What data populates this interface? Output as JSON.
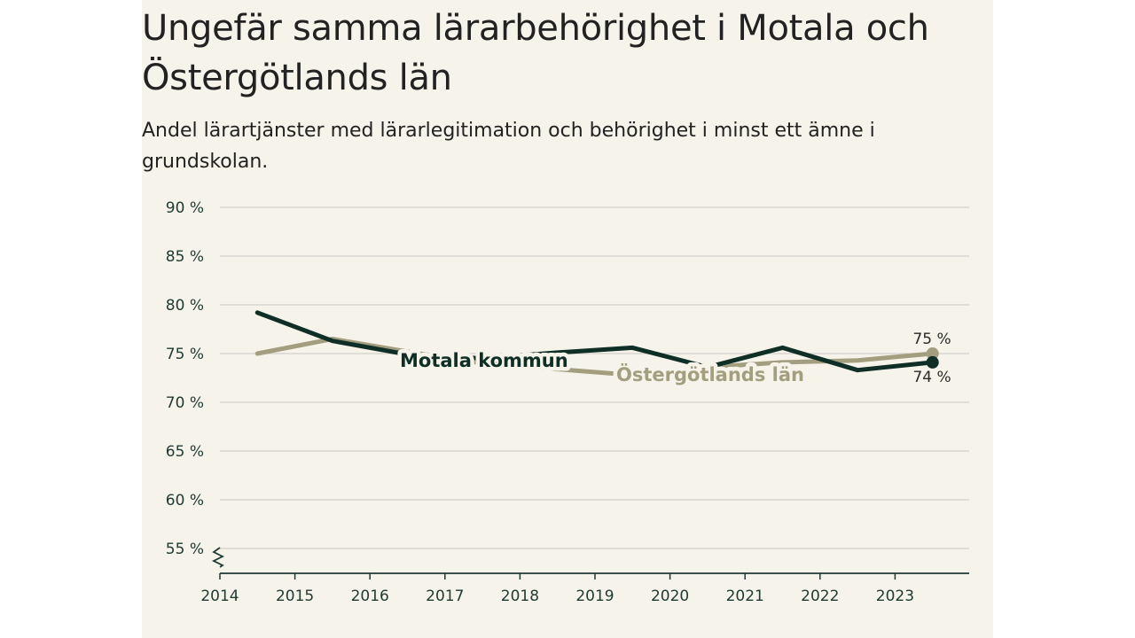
{
  "header": {
    "title": "Ungefär samma lärarbehörighet i Motala och Östergötlands län",
    "subtitle": "Andel lärartjänster med lärarlegitimation och behörighet i minst ett ämne i grundskolan."
  },
  "chart_data": {
    "type": "line",
    "title": "Ungefär samma lärarbehörighet i Motala och Östergötlands län",
    "subtitle": "Andel lärartjänster med lärarlegitimation och behörighet i minst ett ämne i grundskolan.",
    "xlabel": "",
    "ylabel": "",
    "x_ticks": [
      "2014",
      "2015",
      "2016",
      "2017",
      "2018",
      "2019",
      "2020",
      "2021",
      "2022",
      "2023"
    ],
    "y_ticks": [
      "55 %",
      "60 %",
      "65 %",
      "70 %",
      "75 %",
      "80 %",
      "85 %",
      "90 %"
    ],
    "y_tick_values": [
      55,
      60,
      65,
      70,
      75,
      80,
      85,
      90
    ],
    "ylim": [
      52.5,
      90
    ],
    "xlim": [
      2014,
      2024
    ],
    "grid": true,
    "x": [
      2014.5,
      2015.5,
      2016.5,
      2017.5,
      2018.5,
      2019.5,
      2020.5,
      2021.5,
      2022.5,
      2023.5
    ],
    "series": [
      {
        "name": "Motala kommun",
        "color": "#0f2e26",
        "values": [
          79.2,
          76.3,
          74.9,
          74.5,
          75.1,
          75.6,
          73.6,
          75.6,
          73.3,
          74.1
        ],
        "end_label": "74 %"
      },
      {
        "name": "Östergötlands län",
        "color": "#a39e7f",
        "values": [
          75.0,
          76.5,
          75.2,
          74.0,
          73.4,
          72.8,
          73.6,
          74.1,
          74.3,
          75.0
        ],
        "end_label": "75 %"
      }
    ]
  }
}
